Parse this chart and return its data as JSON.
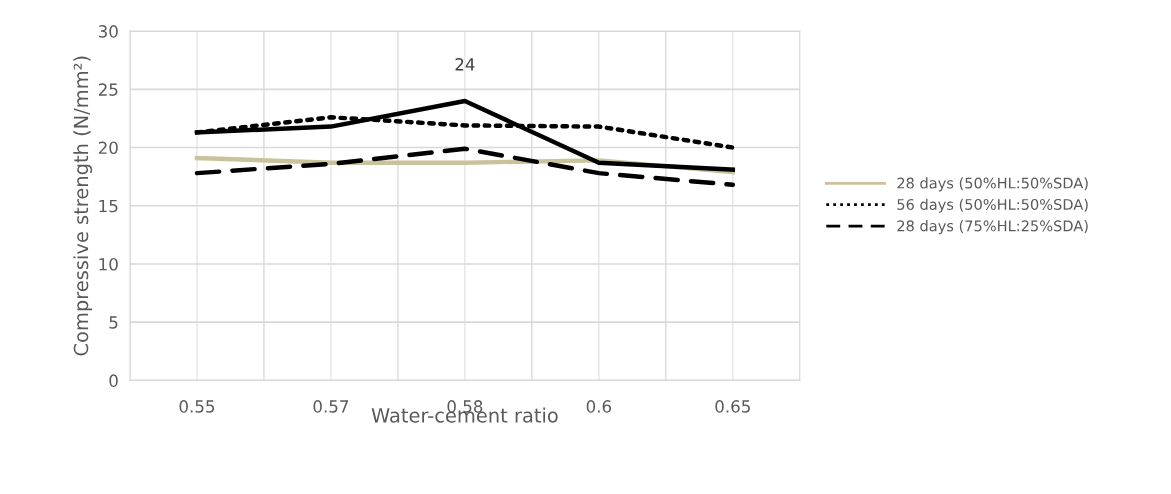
{
  "chart_data": {
    "type": "line",
    "xlabel": "Water-cement ratio",
    "ylabel": "Compressive strength (N/mm²)",
    "categories": [
      "0.55",
      "0.57",
      "0.58",
      "0.6",
      "0.65"
    ],
    "series": [
      {
        "name": "28 days (50%HL:50%SDA)",
        "color": "#c9c29b",
        "line_style": "solid",
        "values": [
          19.1,
          18.7,
          18.7,
          18.9,
          17.9
        ]
      },
      {
        "name": "56 days (50%HL:50%SDA)",
        "color": "#000000",
        "line_style": "dotted",
        "values": [
          21.3,
          22.6,
          21.9,
          21.8,
          20.0
        ]
      },
      {
        "name": "28 days (75%HL:25%SDA)",
        "color": "#000000",
        "line_style": "dashed",
        "values": [
          17.8,
          18.6,
          19.9,
          17.8,
          16.8
        ]
      },
      {
        "color": "#000000",
        "line_style": "solid",
        "values": [
          21.3,
          21.8,
          24.0,
          18.7,
          18.1
        ]
      }
    ],
    "annotations": [
      {
        "text": "24",
        "x": "0.58",
        "y": 24
      }
    ],
    "ylim": [
      0,
      30
    ],
    "yticks": [
      0,
      5,
      10,
      15,
      20,
      25,
      30
    ],
    "grid": true,
    "legend": "right",
    "marker": "none"
  }
}
